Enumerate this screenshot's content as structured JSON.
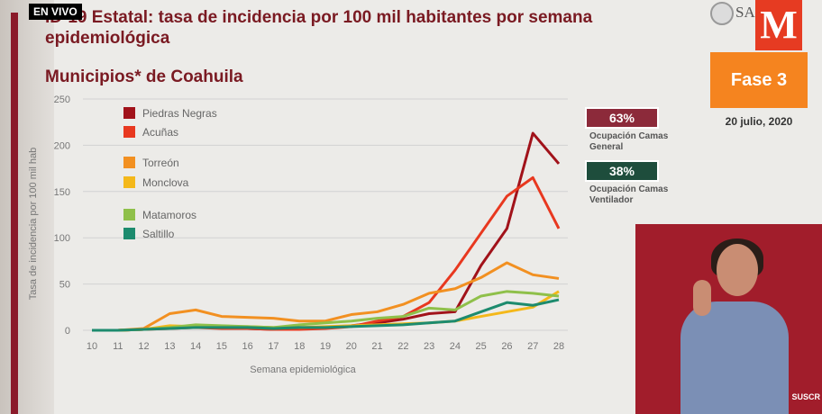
{
  "header": {
    "live_label": "EN VIVO",
    "title": "ID-19 Estatal: tasa de incidencia por 100 mil habitantes por semana epidemiológica",
    "subtitle": "Municipios* de Coahuila",
    "logo_text": "SA"
  },
  "sidebar": {
    "m_logo": "M",
    "phase": "Fase 3",
    "date": "20 julio, 2020",
    "stat_general_value": "63%",
    "stat_general_label": "Ocupación Camas General",
    "stat_general_color": "#8c2a3a",
    "stat_vent_value": "38%",
    "stat_vent_label": "Ocupación Camas Ventilador",
    "stat_vent_color": "#1e4d3c",
    "subscribe": "SUSCR"
  },
  "chart_data": {
    "type": "line",
    "xlabel": "Semana epidemiológica",
    "ylabel": "Tasa de incidencia por 100 mil hab",
    "x": [
      10,
      11,
      12,
      13,
      14,
      15,
      16,
      17,
      18,
      19,
      20,
      21,
      22,
      23,
      24,
      25,
      26,
      27,
      28
    ],
    "ylim": [
      0,
      250
    ],
    "yticks": [
      0,
      50,
      100,
      150,
      200,
      250
    ],
    "grid": true,
    "legend_position": "top-left",
    "series": [
      {
        "name": "Piedras Negras",
        "color": "#a1121a",
        "values": [
          0,
          0,
          1,
          3,
          4,
          3,
          2,
          1,
          2,
          3,
          5,
          8,
          12,
          18,
          20,
          70,
          110,
          213,
          180
        ]
      },
      {
        "name": "Acuñas",
        "color": "#e8381f",
        "values": [
          0,
          0,
          1,
          2,
          3,
          2,
          2,
          1,
          1,
          2,
          4,
          10,
          15,
          30,
          65,
          105,
          145,
          165,
          110
        ]
      },
      {
        "name": "Torreón",
        "color": "#f29021",
        "values": [
          0,
          0,
          2,
          18,
          22,
          15,
          14,
          13,
          10,
          10,
          17,
          20,
          28,
          40,
          45,
          57,
          73,
          60,
          56
        ]
      },
      {
        "name": "Monclova",
        "color": "#f4b81a",
        "values": [
          0,
          0,
          1,
          5,
          4,
          4,
          4,
          3,
          3,
          4,
          5,
          6,
          7,
          8,
          10,
          15,
          20,
          25,
          42
        ]
      },
      {
        "name": "Matamoros",
        "color": "#8fc04a",
        "values": [
          0,
          0,
          1,
          3,
          6,
          5,
          4,
          3,
          6,
          8,
          10,
          13,
          15,
          24,
          22,
          37,
          42,
          40,
          37
        ]
      },
      {
        "name": "Saltillo",
        "color": "#1d8b6e",
        "values": [
          0,
          0,
          1,
          2,
          3,
          3,
          3,
          2,
          3,
          3,
          4,
          5,
          6,
          8,
          10,
          20,
          30,
          27,
          33
        ]
      }
    ]
  }
}
